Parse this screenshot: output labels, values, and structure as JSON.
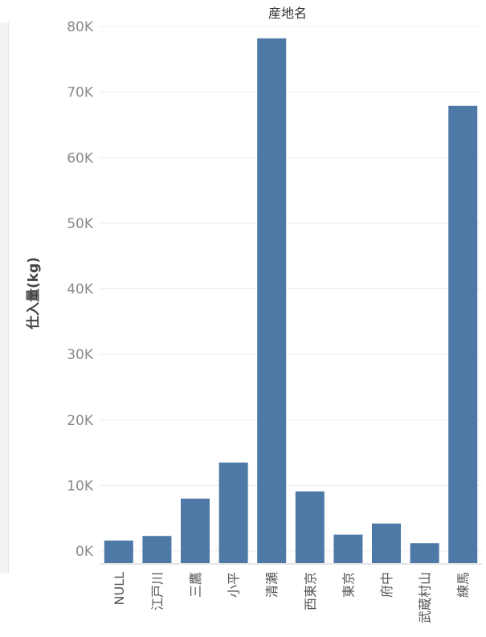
{
  "chart_data": {
    "type": "bar",
    "title": "産地名",
    "xlabel": "",
    "ylabel": "仕入量(kg)",
    "categories": [
      "NULL",
      "江戸川",
      "三鷹",
      "小平",
      "清瀬",
      "西東京",
      "東京",
      "府中",
      "武蔵村山",
      "練馬"
    ],
    "values": [
      1600,
      2300,
      8000,
      13500,
      78200,
      9100,
      2500,
      4200,
      1200,
      67900
    ],
    "ylim": [
      -2000,
      82000
    ],
    "yticks": [
      0,
      10000,
      20000,
      30000,
      40000,
      50000,
      60000,
      70000,
      80000
    ],
    "ytick_labels": [
      "0K",
      "10K",
      "20K",
      "30K",
      "40K",
      "50K",
      "60K",
      "70K",
      "80K"
    ],
    "grid": true,
    "bar_color": "#4e79a7"
  }
}
